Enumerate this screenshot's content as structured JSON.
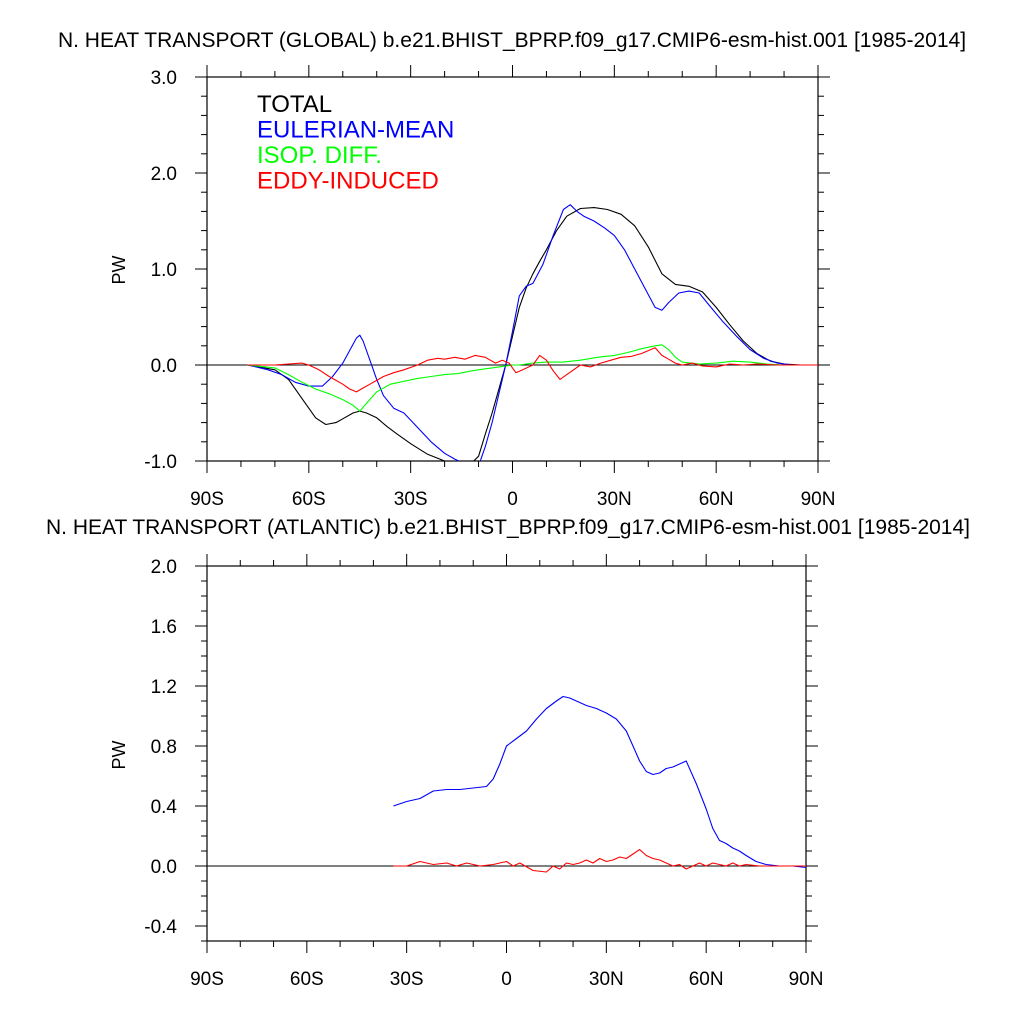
{
  "chart_data": [
    {
      "type": "line",
      "title": "N. HEAT TRANSPORT (GLOBAL) b.e21.BHIST_BPRP.f09_g17.CMIP6-esm-hist.001 [1985-2014]",
      "xlabel": "",
      "ylabel": "PW",
      "xlim": [
        -90,
        90
      ],
      "ylim": [
        -1.0,
        3.0
      ],
      "xticks": [
        {
          "value": -90,
          "label": "90S"
        },
        {
          "value": -60,
          "label": "60S"
        },
        {
          "value": -30,
          "label": "30S"
        },
        {
          "value": 0,
          "label": "0"
        },
        {
          "value": 30,
          "label": "30N"
        },
        {
          "value": 60,
          "label": "60N"
        },
        {
          "value": 90,
          "label": "90N"
        }
      ],
      "yticks": [
        {
          "value": -1.0,
          "label": "-1.0"
        },
        {
          "value": 0.0,
          "label": "0.0"
        },
        {
          "value": 1.0,
          "label": "1.0"
        },
        {
          "value": 2.0,
          "label": "2.0"
        },
        {
          "value": 3.0,
          "label": "3.0"
        }
      ],
      "zero_line": true,
      "legend": "top-left",
      "series": [
        {
          "name": "TOTAL",
          "color": "#000000",
          "x": [
            -78,
            -70,
            -66,
            -62,
            -58,
            -55,
            -52,
            -50,
            -47,
            -45,
            -43,
            -40,
            -37,
            -34,
            -30,
            -25,
            -20,
            -16,
            -12,
            -10,
            -8,
            -6,
            -4,
            -2,
            0,
            2,
            4,
            6,
            8,
            10,
            13,
            16,
            20,
            24,
            28,
            32,
            36,
            40,
            44,
            48,
            52,
            56,
            60,
            64,
            68,
            72,
            76,
            80,
            85,
            90
          ],
          "y": [
            0.0,
            -0.05,
            -0.15,
            -0.35,
            -0.55,
            -0.62,
            -0.6,
            -0.56,
            -0.5,
            -0.48,
            -0.5,
            -0.55,
            -0.64,
            -0.72,
            -0.82,
            -0.93,
            -1.0,
            -1.02,
            -1.02,
            -0.95,
            -0.72,
            -0.5,
            -0.25,
            0.0,
            0.3,
            0.6,
            0.8,
            0.95,
            1.08,
            1.2,
            1.4,
            1.55,
            1.63,
            1.64,
            1.62,
            1.57,
            1.45,
            1.23,
            0.95,
            0.84,
            0.82,
            0.76,
            0.6,
            0.42,
            0.25,
            0.12,
            0.04,
            0.01,
            0.0,
            0.0
          ]
        },
        {
          "name": "EULERIAN-MEAN",
          "color": "#0000ff",
          "x": [
            -78,
            -72,
            -68,
            -64,
            -60,
            -56,
            -53,
            -50,
            -48,
            -46,
            -45,
            -44,
            -42,
            -40,
            -38,
            -35,
            -32,
            -28,
            -24,
            -20,
            -17,
            -14,
            -12,
            -10,
            -8,
            -6,
            -4,
            -2,
            0,
            2,
            4,
            6,
            9,
            12,
            15,
            17,
            19,
            21,
            24,
            27,
            30,
            33,
            36,
            39,
            42,
            44,
            46,
            49,
            52,
            55,
            58,
            62,
            66,
            70,
            74,
            78,
            82,
            86,
            90
          ],
          "y": [
            0.0,
            -0.05,
            -0.1,
            -0.18,
            -0.22,
            -0.22,
            -0.12,
            0.02,
            0.15,
            0.28,
            0.31,
            0.25,
            0.05,
            -0.15,
            -0.32,
            -0.45,
            -0.5,
            -0.65,
            -0.8,
            -0.92,
            -0.98,
            -1.03,
            -1.08,
            -1.05,
            -0.85,
            -0.6,
            -0.3,
            0.0,
            0.35,
            0.72,
            0.82,
            0.85,
            1.05,
            1.35,
            1.62,
            1.67,
            1.6,
            1.55,
            1.5,
            1.43,
            1.35,
            1.2,
            1.0,
            0.8,
            0.6,
            0.57,
            0.65,
            0.75,
            0.77,
            0.75,
            0.62,
            0.45,
            0.3,
            0.16,
            0.07,
            0.02,
            0.0,
            0.0,
            0.0
          ]
        },
        {
          "name": "ISOP. DIFF.",
          "color": "#00ff00",
          "x": [
            -78,
            -70,
            -66,
            -62,
            -58,
            -54,
            -50,
            -47,
            -45,
            -43,
            -40,
            -36,
            -32,
            -28,
            -24,
            -20,
            -16,
            -12,
            -8,
            -6,
            -4,
            -2,
            0,
            2,
            4,
            6,
            10,
            15,
            20,
            25,
            30,
            34,
            38,
            42,
            44,
            46,
            48,
            50,
            55,
            60,
            65,
            70,
            75,
            80,
            90
          ],
          "y": [
            0.0,
            -0.03,
            -0.1,
            -0.18,
            -0.25,
            -0.3,
            -0.36,
            -0.42,
            -0.48,
            -0.4,
            -0.28,
            -0.2,
            -0.17,
            -0.14,
            -0.12,
            -0.1,
            -0.09,
            -0.06,
            -0.04,
            -0.03,
            -0.02,
            -0.01,
            0.0,
            0.0,
            0.01,
            0.02,
            0.03,
            0.03,
            0.05,
            0.08,
            0.1,
            0.13,
            0.17,
            0.2,
            0.21,
            0.16,
            0.08,
            0.03,
            0.01,
            0.02,
            0.04,
            0.03,
            0.01,
            0.0,
            0.0
          ]
        },
        {
          "name": "EDDY-INDUCED",
          "color": "#ff0000",
          "x": [
            -78,
            -70,
            -66,
            -62,
            -60,
            -57,
            -54,
            -52,
            -50,
            -48,
            -46,
            -44,
            -42,
            -40,
            -38,
            -35,
            -32,
            -28,
            -25,
            -22,
            -20,
            -17,
            -14,
            -11,
            -8,
            -5,
            -3,
            -1,
            0,
            1,
            3,
            6,
            8,
            10,
            12,
            14,
            16,
            18,
            20,
            23,
            26,
            29,
            32,
            35,
            38,
            40,
            42,
            44,
            46,
            48,
            50,
            53,
            56,
            60,
            64,
            68,
            72,
            78,
            84,
            90
          ],
          "y": [
            0.0,
            0.0,
            0.01,
            0.02,
            0.0,
            -0.05,
            -0.12,
            -0.16,
            -0.2,
            -0.25,
            -0.28,
            -0.24,
            -0.2,
            -0.16,
            -0.12,
            -0.08,
            -0.05,
            0.0,
            0.05,
            0.07,
            0.06,
            0.08,
            0.06,
            0.1,
            0.08,
            0.02,
            0.05,
            0.02,
            -0.03,
            -0.08,
            -0.05,
            0.0,
            0.1,
            0.05,
            -0.06,
            -0.15,
            -0.1,
            -0.05,
            0.0,
            -0.02,
            0.02,
            0.05,
            0.08,
            0.09,
            0.12,
            0.15,
            0.18,
            0.1,
            0.06,
            0.02,
            0.0,
            0.02,
            -0.01,
            -0.02,
            0.01,
            0.0,
            0.01,
            0.0,
            0.0,
            0.0
          ]
        }
      ]
    },
    {
      "type": "line",
      "title": "N. HEAT TRANSPORT (ATLANTIC) b.e21.BHIST_BPRP.f09_g17.CMIP6-esm-hist.001 [1985-2014]",
      "xlabel": "",
      "ylabel": "PW",
      "xlim": [
        -90,
        90
      ],
      "ylim": [
        -0.5,
        2.0
      ],
      "xticks": [
        {
          "value": -90,
          "label": "90S"
        },
        {
          "value": -60,
          "label": "60S"
        },
        {
          "value": -30,
          "label": "30S"
        },
        {
          "value": 0,
          "label": "0"
        },
        {
          "value": 30,
          "label": "30N"
        },
        {
          "value": 60,
          "label": "60N"
        },
        {
          "value": 90,
          "label": "90N"
        }
      ],
      "yticks": [
        {
          "value": -0.4,
          "label": "-0.4"
        },
        {
          "value": 0.0,
          "label": "0.0"
        },
        {
          "value": 0.4,
          "label": "0.4"
        },
        {
          "value": 0.8,
          "label": "0.8"
        },
        {
          "value": 1.2,
          "label": "1.2"
        },
        {
          "value": 1.6,
          "label": "1.6"
        },
        {
          "value": 2.0,
          "label": "2.0"
        }
      ],
      "zero_line": true,
      "series": [
        {
          "name": "",
          "color": "#0000ff",
          "x": [
            -34,
            -30,
            -26,
            -22,
            -18,
            -14,
            -10,
            -6,
            -4,
            -2,
            0,
            3,
            6,
            9,
            12,
            15,
            17,
            19,
            21,
            24,
            27,
            30,
            33,
            36,
            38,
            40,
            42,
            44,
            46,
            48,
            50,
            52,
            54,
            57,
            60,
            62,
            64,
            66,
            68,
            70,
            72,
            75,
            78,
            82,
            86,
            90
          ],
          "y": [
            0.4,
            0.43,
            0.45,
            0.5,
            0.51,
            0.51,
            0.52,
            0.53,
            0.58,
            0.68,
            0.8,
            0.85,
            0.9,
            0.98,
            1.05,
            1.1,
            1.13,
            1.12,
            1.1,
            1.07,
            1.05,
            1.02,
            0.98,
            0.9,
            0.8,
            0.7,
            0.63,
            0.61,
            0.62,
            0.65,
            0.66,
            0.68,
            0.7,
            0.55,
            0.38,
            0.25,
            0.17,
            0.15,
            0.12,
            0.1,
            0.07,
            0.03,
            0.01,
            0.0,
            0.0,
            -0.01
          ]
        },
        {
          "name": "",
          "color": "#ff0000",
          "x": [
            -34,
            -30,
            -26,
            -22,
            -18,
            -15,
            -12,
            -8,
            -4,
            0,
            2,
            4,
            8,
            12,
            14,
            16,
            18,
            20,
            22,
            24,
            26,
            28,
            30,
            32,
            34,
            36,
            38,
            40,
            42,
            44,
            46,
            48,
            50,
            52,
            54,
            56,
            58,
            60,
            62,
            64,
            66,
            68,
            70,
            72,
            76,
            80,
            90
          ],
          "y": [
            0.0,
            0.0,
            0.03,
            0.01,
            0.02,
            0.0,
            0.02,
            0.0,
            0.01,
            0.03,
            0.0,
            0.02,
            -0.03,
            -0.04,
            0.0,
            -0.02,
            0.02,
            0.01,
            0.02,
            0.04,
            0.02,
            0.05,
            0.03,
            0.04,
            0.06,
            0.05,
            0.08,
            0.11,
            0.07,
            0.05,
            0.04,
            0.02,
            0.0,
            0.01,
            -0.02,
            0.0,
            0.02,
            0.0,
            0.02,
            0.01,
            0.0,
            0.02,
            0.0,
            0.01,
            0.0,
            0.0,
            0.0
          ]
        }
      ]
    }
  ]
}
